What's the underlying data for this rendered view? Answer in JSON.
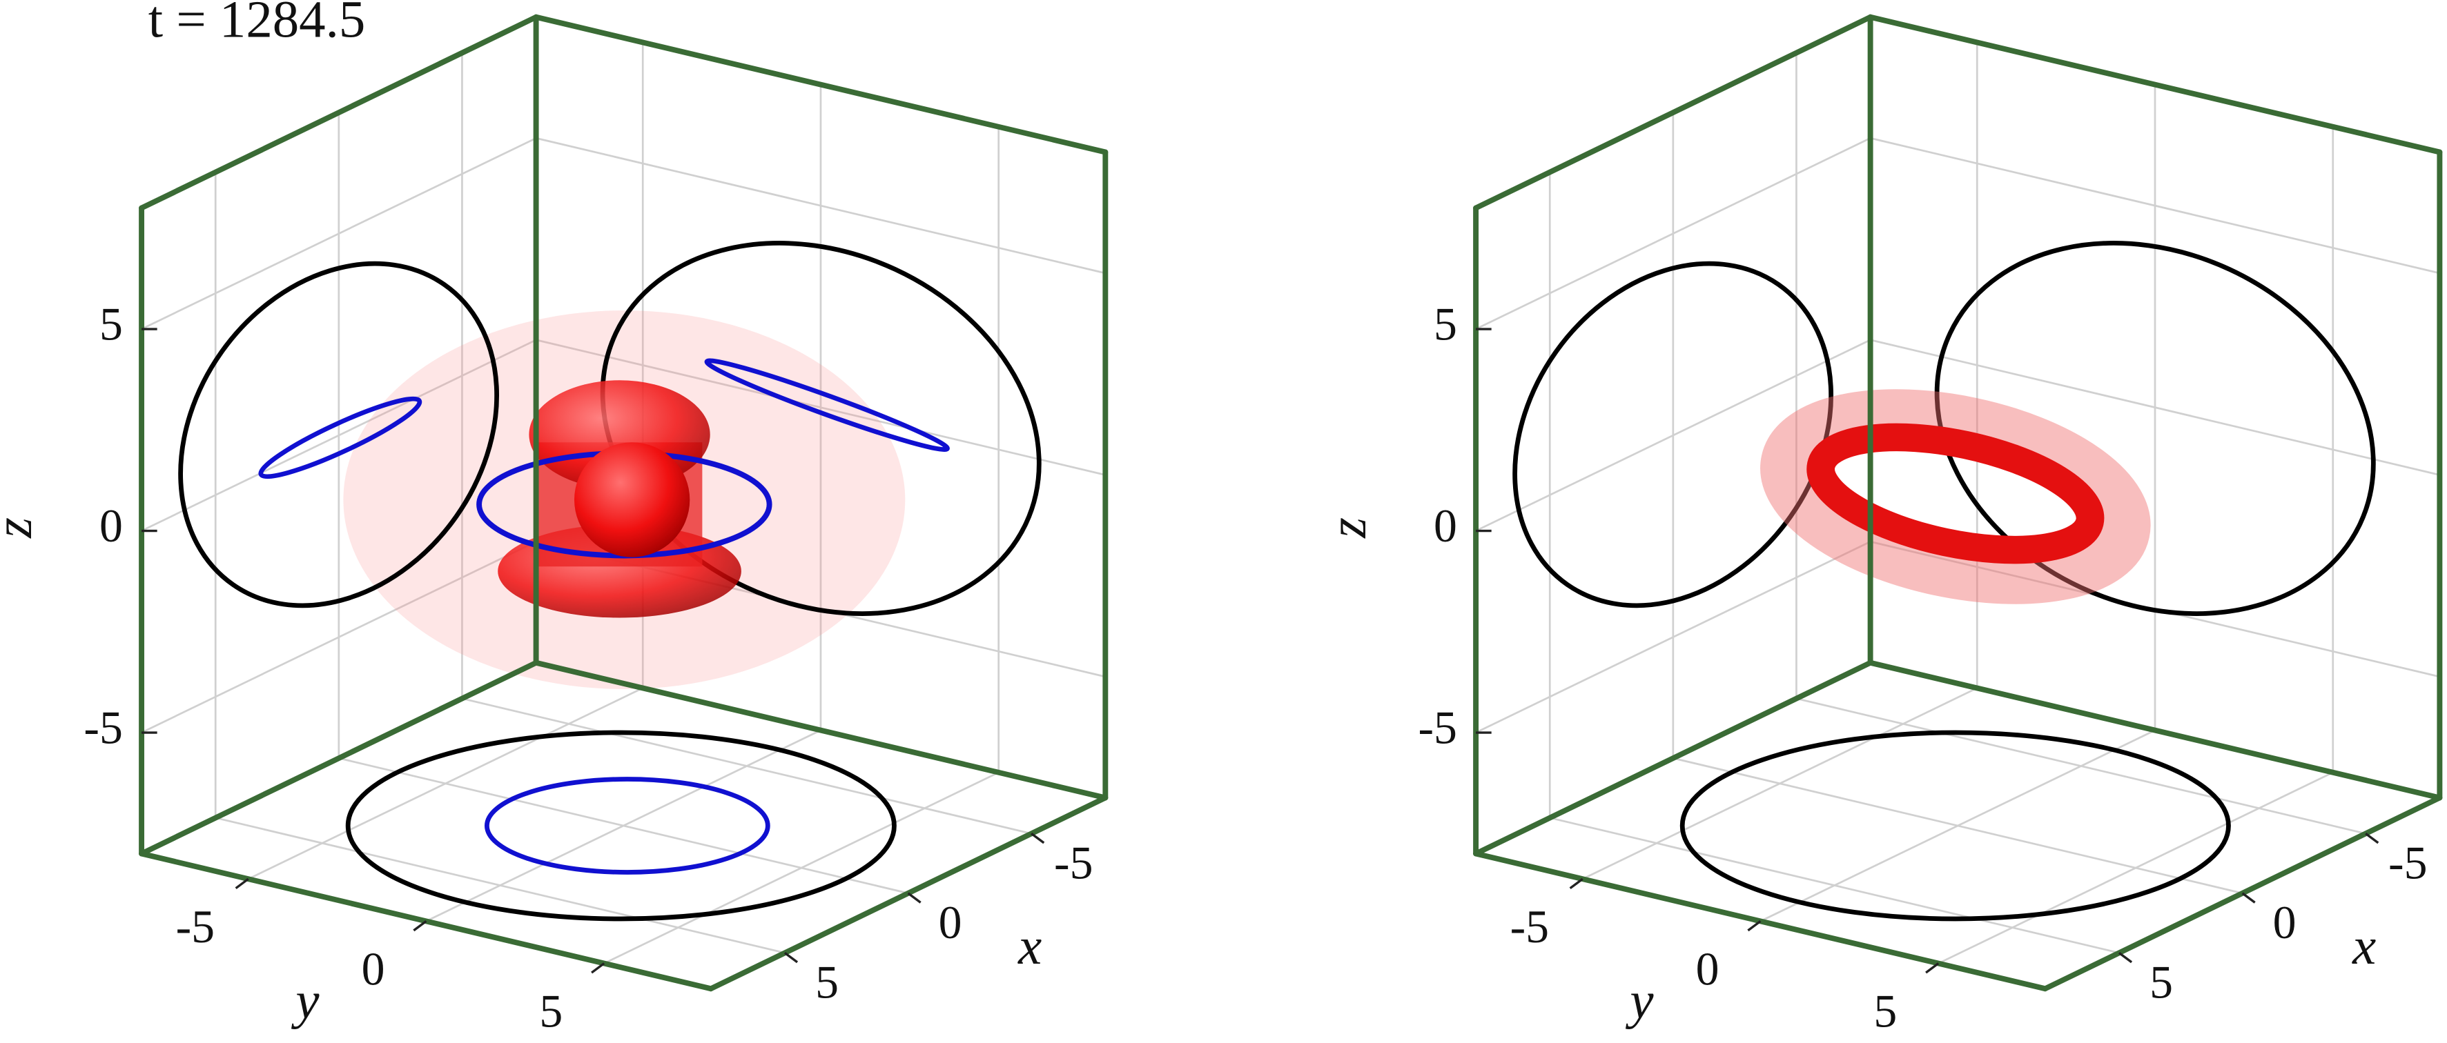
{
  "chart_data": [
    {
      "type": "isosurface3d",
      "title": "t = 1284.5",
      "xlabel": "x",
      "ylabel": "y",
      "zlabel": "z",
      "xlim": [
        -8,
        8
      ],
      "ylim": [
        -8,
        8
      ],
      "zlim": [
        -8,
        8
      ],
      "xticks": [
        -5,
        0,
        5
      ],
      "yticks": [
        -5,
        0,
        5
      ],
      "zticks": [
        -5,
        0,
        5
      ],
      "grid": true,
      "box_color": "#3a6b35"
    },
    {
      "type": "isosurface3d",
      "xlabel": "x",
      "ylabel": "y",
      "zlabel": "z",
      "xlim": [
        -8,
        8
      ],
      "ylim": [
        -8,
        8
      ],
      "zlim": [
        -8,
        8
      ],
      "xticks": [
        -5,
        0,
        5
      ],
      "yticks": [
        -5,
        0,
        5
      ],
      "zticks": [
        -5,
        0,
        5
      ],
      "grid": true,
      "box_color": "#3a6b35"
    }
  ]
}
